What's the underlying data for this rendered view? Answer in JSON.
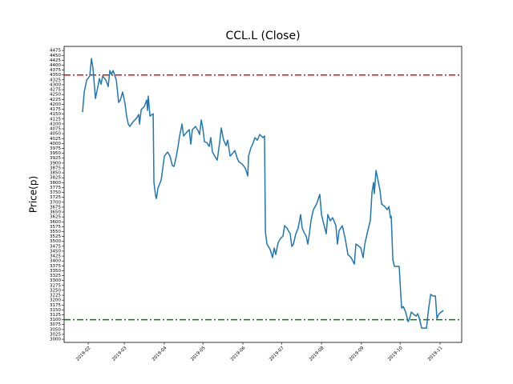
{
  "chart_data": {
    "type": "line",
    "title": "CCL.L (Close)",
    "y_label": "Price(p)",
    "color": "#1f77b4",
    "x": [
      26.6,
      27.9,
      29.8,
      32.2,
      33.5,
      34.7,
      36.6,
      38.5,
      39.7,
      41,
      42.2,
      44.7,
      46.5,
      47.8,
      49,
      50.3,
      52.8,
      54.6,
      55.9,
      57.7,
      59.6,
      60.8,
      62.1,
      63.3,
      65.8,
      68.3,
      70.2,
      70.8,
      72.1,
      74.5,
      76.4,
      77,
      77.6,
      78.9,
      81.4,
      82,
      83.3,
      83.9,
      85.1,
      87.6,
      90.1,
      92.6,
      94.4,
      96.3,
      97.6,
      99.4,
      100.7,
      101.9,
      103.8,
      105,
      107.5,
      109.4,
      110.6,
      111.8,
      114.3,
      116.2,
      117.4,
      118.7,
      119.9,
      121.2,
      123,
      124.9,
      126.1,
      127.4,
      129.8,
      131.1,
      133,
      134.2,
      136.1,
      138,
      139.2,
      141.1,
      142.3,
      144.8,
      146.7,
      147.9,
      150.4,
      152.9,
      154.8,
      155.4,
      157.2,
      159.1,
      160.4,
      162.2,
      164.1,
      166.6,
      167.8,
      168.5,
      169.7,
      172.2,
      174,
      175.3,
      176.5,
      178.4,
      180.2,
      182.1,
      183.4,
      185.2,
      187.7,
      189,
      190.2,
      192.1,
      193.9,
      195.8,
      197,
      198.3,
      200.1,
      201.4,
      202.6,
      203.9,
      205.7,
      208.2,
      210.7,
      212,
      213.8,
      215.7,
      216.9,
      218.8,
      220.7,
      223.2,
      224.4,
      225.7,
      228.2,
      230.6,
      232.5,
      235,
      237.5,
      238.7,
      240.6,
      242.5,
      244.3,
      245.6,
      247.4,
      249.9,
      251.2,
      252.4,
      253,
      254.3,
      255.5,
      257.4,
      258.6,
      261.1,
      263,
      264.3,
      265.5,
      266.1,
      267.4,
      268.6,
      270.5,
      272.3,
      273.6,
      274.2,
      275.5,
      277.3,
      279.2,
      280.4,
      281.7,
      283.6,
      285.4,
      286.7,
      287.9,
      289.8,
      292.3,
      293.5,
      294.8,
      296.7,
      298.5,
      300.4,
      301.6,
      302.9,
      304.8,
      306.6
    ],
    "values": [
      4160,
      4263,
      4324,
      4345,
      4434,
      4385,
      4230,
      4291,
      4332,
      4303,
      4345,
      4324,
      4291,
      4373,
      4353,
      4373,
      4324,
      4210,
      4222,
      4263,
      4201,
      4140,
      4099,
      4087,
      4111,
      4128,
      4148,
      4099,
      4173,
      4189,
      4222,
      4169,
      4242,
      4140,
      4152,
      3801,
      3731,
      3719,
      3772,
      3813,
      3936,
      3956,
      3936,
      3887,
      3883,
      3936,
      3985,
      4038,
      4099,
      4038,
      4058,
      4071,
      3997,
      4071,
      4087,
      4066,
      4046,
      4120,
      4079,
      4009,
      4005,
      3985,
      4030,
      3956,
      3928,
      3915,
      4005,
      4079,
      4017,
      3989,
      4017,
      3936,
      3944,
      3964,
      3923,
      3907,
      3895,
      3874,
      3834,
      3936,
      3977,
      4005,
      4030,
      4017,
      4046,
      4030,
      4038,
      3548,
      3486,
      3458,
      3417,
      3466,
      3433,
      3494,
      3515,
      3527,
      3580,
      3568,
      3539,
      3474,
      3486,
      3539,
      3568,
      3637,
      3568,
      3548,
      3527,
      3486,
      3539,
      3608,
      3662,
      3691,
      3740,
      3637,
      3588,
      3539,
      3637,
      3605,
      3621,
      3580,
      3486,
      3556,
      3580,
      3507,
      3433,
      3417,
      3384,
      3486,
      3478,
      3466,
      3417,
      3486,
      3539,
      3608,
      3752,
      3801,
      3744,
      3862,
      3825,
      3760,
      3691,
      3678,
      3662,
      3678,
      3621,
      3629,
      3405,
      3372,
      3372,
      3372,
      3221,
      3159,
      3167,
      3139,
      3090,
      3106,
      3139,
      3127,
      3118,
      3131,
      3106,
      3057,
      3057,
      3057,
      3139,
      3229,
      3221,
      3221,
      3106,
      3127,
      3139,
      3147
    ],
    "xlim": [
      12.3,
      320.8
    ],
    "ylim": [
      2984,
      4496
    ],
    "xticks": [
      {
        "value": 31,
        "label": "2019-02"
      },
      {
        "value": 59,
        "label": "2019-03"
      },
      {
        "value": 90,
        "label": "2019-04"
      },
      {
        "value": 120,
        "label": "2019-05"
      },
      {
        "value": 151,
        "label": "2019-06"
      },
      {
        "value": 181,
        "label": "2019-07"
      },
      {
        "value": 212,
        "label": "2019-08"
      },
      {
        "value": 243,
        "label": "2019-09"
      },
      {
        "value": 273,
        "label": "2019-10"
      },
      {
        "value": 304,
        "label": "2019-11"
      }
    ],
    "yticks": [
      3000,
      3025,
      3050,
      3075,
      3100,
      3125,
      3150,
      3175,
      3200,
      3225,
      3250,
      3275,
      3300,
      3325,
      3350,
      3375,
      3400,
      3425,
      3450,
      3475,
      3500,
      3525,
      3550,
      3575,
      3600,
      3625,
      3650,
      3675,
      3700,
      3725,
      3750,
      3775,
      3800,
      3825,
      3850,
      3875,
      3900,
      3925,
      3950,
      3975,
      4000,
      4025,
      4050,
      4075,
      4100,
      4125,
      4150,
      4175,
      4200,
      4225,
      4250,
      4275,
      4300,
      4325,
      4350,
      4375,
      4400,
      4425,
      4450,
      4475
    ],
    "hlines": [
      {
        "value": 4350,
        "color": "#ff0000"
      },
      {
        "value": 3100,
        "color": "#008000"
      }
    ]
  }
}
